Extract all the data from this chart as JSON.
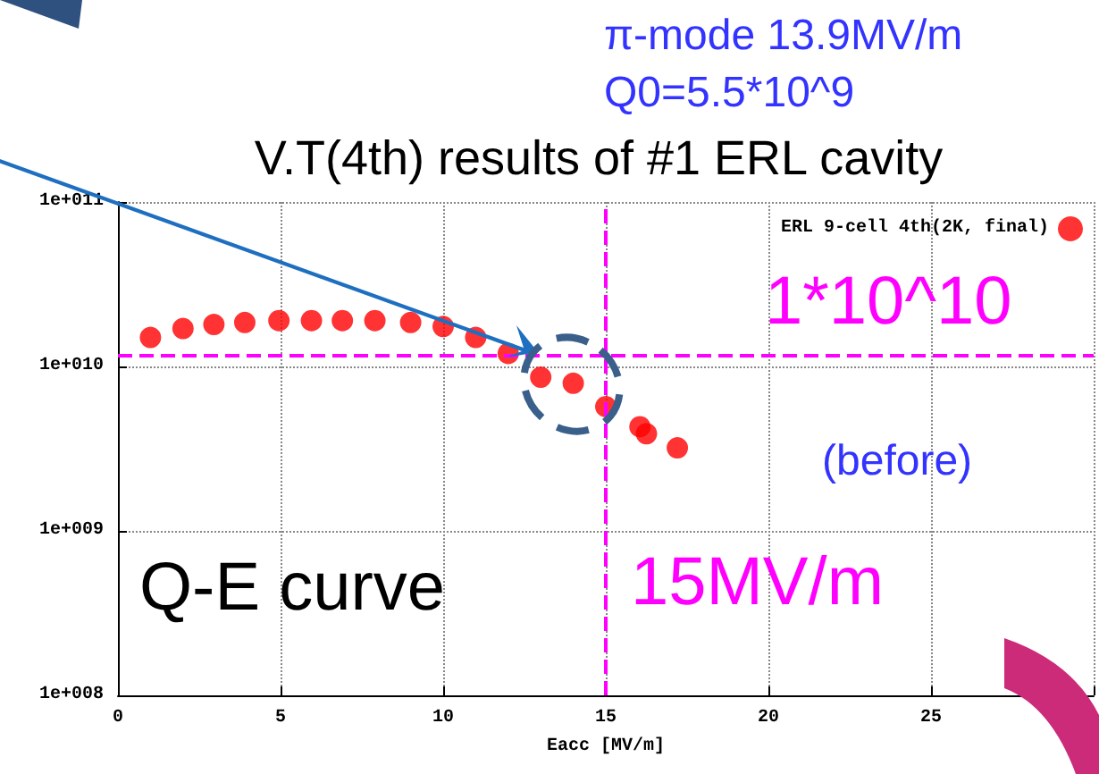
{
  "chart_data": {
    "type": "scatter",
    "title": "V.T(4th) results of #1 ERL cavity",
    "xlabel": "Eacc [MV/m]",
    "series": [
      {
        "name": "ERL 9-cell 4th(2K, final)",
        "color": "#ff0000",
        "x": [
          1.0,
          2.0,
          2.95,
          3.9,
          4.95,
          5.95,
          6.9,
          7.9,
          9.0,
          10.0,
          11.0,
          12.0,
          13.0,
          14.0,
          15.0,
          16.05,
          16.25,
          17.2
        ],
        "values": [
          15000000000.0,
          17000000000.0,
          18000000000.0,
          18500000000.0,
          19000000000.0,
          19000000000.0,
          19000000000.0,
          19000000000.0,
          18500000000.0,
          17500000000.0,
          15000000000.0,
          12000000000.0,
          8600000000.0,
          7900000000.0,
          5700000000.0,
          4300000000.0,
          3900000000.0,
          3200000000.0
        ]
      }
    ],
    "xlim": [
      0,
      30
    ],
    "xticks": [
      0,
      5,
      10,
      15,
      20,
      25,
      {
        "value": 30,
        "label": null
      }
    ],
    "ylim": [
      100000000.0,
      100000000000.0
    ],
    "yticks": [
      {
        "value": 100000000.0,
        "label": "1e+008"
      },
      {
        "value": 1000000000.0,
        "label": "1e+009"
      },
      {
        "value": 10000000000.0,
        "label": "1e+010"
      },
      {
        "value": 100000000000.0,
        "label": "1e+011"
      }
    ],
    "log": "y",
    "grid": true,
    "legend": "top right",
    "marker": "circle",
    "ref_lines": [
      {
        "axis": "y",
        "value": 11600000000.0,
        "color": "#ff00ff",
        "line_style": "dashed"
      },
      {
        "axis": "x",
        "value": 15,
        "label": "15MV/m",
        "color": "#ff00ff",
        "line_style": "dashed"
      }
    ],
    "annotations": [
      "π-mode 13.9MV/m",
      "Q0=5.5*10^9",
      "(before)",
      "Q-E curve",
      "1*10^10"
    ]
  }
}
